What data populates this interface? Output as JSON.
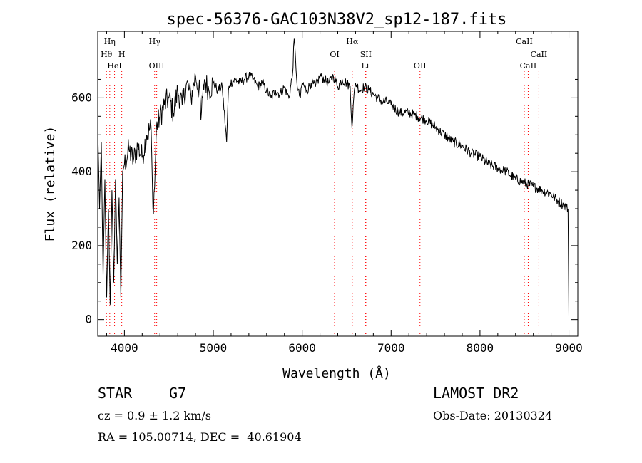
{
  "chart_data": {
    "type": "line",
    "title": "spec-56376-GAC103N38V2_sp12-187.fits",
    "xlabel": "Wavelength (Å)",
    "ylabel": "Flux (relative)",
    "xlim": [
      3700,
      9100
    ],
    "ylim": [
      -45,
      780
    ],
    "xticks": [
      4000,
      5000,
      6000,
      7000,
      8000,
      9000
    ],
    "yticks": [
      0,
      200,
      400,
      600
    ],
    "grid": false,
    "series": [
      {
        "x": [
          3700,
          3720,
          3740,
          3760,
          3780,
          3800,
          3820,
          3840,
          3860,
          3880,
          3900,
          3920,
          3940,
          3960,
          3980,
          4000,
          4050,
          4100,
          4150,
          4200,
          4250,
          4300,
          4320,
          4340,
          4360,
          4400,
          4450,
          4500,
          4550,
          4600,
          4650,
          4700,
          4750,
          4800,
          4850,
          4860,
          4880,
          4900,
          4950,
          5000,
          5050,
          5100,
          5150,
          5170,
          5190,
          5250,
          5300,
          5350,
          5400,
          5450,
          5500,
          5550,
          5600,
          5650,
          5700,
          5750,
          5800,
          5850,
          5890,
          5910,
          5930,
          5950,
          5980,
          6000,
          6050,
          6100,
          6150,
          6200,
          6250,
          6300,
          6350,
          6400,
          6450,
          6500,
          6540,
          6560,
          6580,
          6600,
          6650,
          6700,
          6750,
          6800,
          6850,
          6900,
          6950,
          7000,
          7100,
          7200,
          7300,
          7400,
          7500,
          7600,
          7700,
          7800,
          7900,
          8000,
          8100,
          8200,
          8300,
          8400,
          8500,
          8600,
          8700,
          8800,
          8880,
          8940,
          8990,
          9000
        ],
        "y": [
          520,
          300,
          480,
          120,
          380,
          60,
          300,
          40,
          350,
          100,
          380,
          150,
          330,
          60,
          400,
          420,
          460,
          430,
          470,
          440,
          500,
          520,
          300,
          360,
          520,
          550,
          580,
          600,
          560,
          620,
          580,
          640,
          600,
          660,
          610,
          540,
          600,
          650,
          620,
          640,
          620,
          630,
          480,
          620,
          640,
          650,
          640,
          650,
          660,
          650,
          630,
          640,
          620,
          600,
          620,
          610,
          630,
          600,
          660,
          760,
          680,
          620,
          600,
          640,
          620,
          640,
          630,
          660,
          650,
          640,
          660,
          630,
          650,
          640,
          630,
          520,
          600,
          640,
          620,
          630,
          620,
          610,
          600,
          590,
          590,
          580,
          560,
          560,
          550,
          540,
          520,
          500,
          480,
          470,
          450,
          440,
          420,
          410,
          400,
          380,
          370,
          360,
          350,
          340,
          320,
          310,
          300,
          10
        ]
      }
    ],
    "lines": [
      {
        "label": "Hη",
        "x": 3835,
        "row": 0
      },
      {
        "label": "Hθ",
        "x": 3798,
        "row": 1
      },
      {
        "label": "H",
        "x": 3970,
        "row": 1
      },
      {
        "label": "HeI",
        "x": 3889,
        "row": 2
      },
      {
        "label": "Hγ",
        "x": 4340,
        "row": 0
      },
      {
        "label": "OIII",
        "x": 4363,
        "row": 2
      },
      {
        "label": "Hα",
        "x": 6563,
        "row": 0
      },
      {
        "label": "OI",
        "x": 6364,
        "row": 1
      },
      {
        "label": "SII",
        "x": 6716,
        "row": 1
      },
      {
        "label": "Li",
        "x": 6708,
        "row": 2
      },
      {
        "label": "OII",
        "x": 7325,
        "row": 2
      },
      {
        "label": "CaII",
        "x": 8498,
        "row": 0
      },
      {
        "label": "CaII",
        "x": 8662,
        "row": 1
      },
      {
        "label": "CaII",
        "x": 8542,
        "row": 2
      }
    ],
    "line_color": "#ff0000"
  },
  "info": {
    "object_type": "STAR",
    "subclass": "G7",
    "survey": "LAMOST DR2",
    "cz": "cz = 0.9 ± 1.2 km/s",
    "obs_date": "Obs-Date: 20130324",
    "coords": "RA = 105.00714, DEC =  40.61904"
  }
}
